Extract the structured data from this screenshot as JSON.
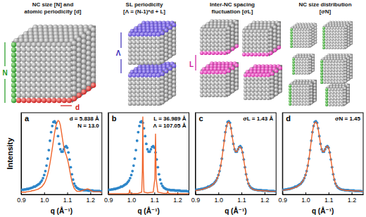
{
  "diagram": {
    "panels": [
      {
        "title": [
          "NC size [N] and",
          "atomic periodicity [d]"
        ],
        "labels": [
          "N",
          "d"
        ]
      },
      {
        "title": [
          "SL periodicity",
          "[Λ = (N-1)*d + L]"
        ],
        "labels": [
          "Λ"
        ]
      },
      {
        "title": [
          "Inter-NC spacing",
          "fluctuation [σL]"
        ],
        "labels": [
          "L"
        ]
      },
      {
        "title": [
          "NC size distribution",
          "[σN]"
        ]
      }
    ]
  },
  "chart_data": [
    {
      "type": "line",
      "label": "a",
      "annotations": [
        "d = 5.838 Å",
        "N = 13.0"
      ],
      "x_label": "q (Å⁻¹)",
      "y_label": "Intensity",
      "xlim": [
        0.9,
        1.25
      ],
      "ylim": [
        0,
        1.05
      ],
      "xticks": [
        0.9,
        {
          "value": 1,
          "label": "1.0"
        },
        1.1,
        1.2
      ],
      "tick_labels": "x",
      "x": [
        0.9,
        0.905,
        0.91,
        0.915,
        0.92,
        0.925,
        0.93,
        0.935,
        0.94,
        0.945,
        0.95,
        0.955,
        0.96,
        0.965,
        0.97,
        0.975,
        0.98,
        0.985,
        0.99,
        0.995,
        1.0,
        1.005,
        1.01,
        1.015,
        1.02,
        1.025,
        1.03,
        1.035,
        1.04,
        1.045,
        1.05,
        1.055,
        1.06,
        1.065,
        1.07,
        1.075,
        1.08,
        1.085,
        1.09,
        1.095,
        1.1,
        1.105,
        1.11,
        1.115,
        1.12,
        1.125,
        1.13,
        1.135,
        1.14,
        1.145,
        1.15,
        1.155,
        1.16,
        1.165,
        1.17,
        1.175,
        1.18,
        1.185,
        1.19,
        1.195,
        1.2,
        1.205,
        1.21,
        1.215,
        1.22,
        1.225,
        1.23,
        1.235,
        1.24,
        1.245,
        1.25
      ],
      "series": [
        {
          "type": "scatter",
          "marker": "circle",
          "color": "#2e86c9",
          "values": [
            0.06,
            0.06,
            0.06,
            0.065,
            0.065,
            0.07,
            0.07,
            0.075,
            0.08,
            0.085,
            0.09,
            0.1,
            0.1,
            0.11,
            0.12,
            0.13,
            0.14,
            0.16,
            0.18,
            0.21,
            0.25,
            0.3,
            0.37,
            0.46,
            0.57,
            0.69,
            0.8,
            0.88,
            0.93,
            0.94,
            0.92,
            0.85,
            0.75,
            0.65,
            0.58,
            0.55,
            0.55,
            0.58,
            0.61,
            0.62,
            0.6,
            0.54,
            0.45,
            0.35,
            0.26,
            0.19,
            0.14,
            0.11,
            0.09,
            0.08,
            0.07,
            0.065,
            0.06,
            0.06,
            0.055,
            0.055,
            0.055,
            0.055,
            0.05,
            0.05,
            0.05,
            0.05,
            0.05,
            0.045,
            0.045,
            0.045,
            0.045,
            0.045,
            0.045,
            0.04,
            0.04
          ]
        },
        {
          "type": "line",
          "color": "#f0642a",
          "values": [
            0.03,
            0.03,
            0.03,
            0.03,
            0.03,
            0.035,
            0.035,
            0.04,
            0.04,
            0.045,
            0.05,
            0.05,
            0.055,
            0.06,
            0.065,
            0.07,
            0.08,
            0.09,
            0.1,
            0.12,
            0.14,
            0.17,
            0.21,
            0.26,
            0.32,
            0.4,
            0.49,
            0.59,
            0.69,
            0.79,
            0.87,
            0.92,
            0.95,
            0.94,
            0.89,
            0.8,
            0.7,
            0.61,
            0.55,
            0.51,
            0.46,
            0.4,
            0.32,
            0.24,
            0.17,
            0.12,
            0.08,
            0.06,
            0.045,
            0.04,
            0.04,
            0.04,
            0.045,
            0.05,
            0.055,
            0.06,
            0.065,
            0.07,
            0.07,
            0.065,
            0.055,
            0.045,
            0.04,
            0.035,
            0.035,
            0.035,
            0.035,
            0.035,
            0.035,
            0.03,
            0.03
          ]
        }
      ]
    },
    {
      "type": "line",
      "label": "b",
      "annotations": [
        "L = 36.989 Å",
        "Λ = 107.05 Å"
      ],
      "x_label": "q (Å⁻¹)",
      "xlim": [
        0.9,
        1.25
      ],
      "ylim": [
        0,
        1.05
      ],
      "xticks": [
        0.9,
        {
          "value": 1,
          "label": "1.0"
        },
        1.1,
        1.2
      ],
      "tick_labels": "x",
      "x": [
        0.9,
        0.905,
        0.91,
        0.915,
        0.92,
        0.925,
        0.93,
        0.935,
        0.94,
        0.945,
        0.95,
        0.955,
        0.96,
        0.965,
        0.97,
        0.975,
        0.98,
        0.985,
        0.99,
        0.995,
        1.0,
        1.005,
        1.01,
        1.015,
        1.02,
        1.025,
        1.03,
        1.035,
        1.04,
        1.045,
        1.05,
        1.055,
        1.06,
        1.065,
        1.07,
        1.075,
        1.08,
        1.085,
        1.09,
        1.095,
        1.1,
        1.105,
        1.11,
        1.115,
        1.12,
        1.125,
        1.13,
        1.135,
        1.14,
        1.145,
        1.15,
        1.155,
        1.16,
        1.165,
        1.17,
        1.175,
        1.18,
        1.185,
        1.19,
        1.195,
        1.2,
        1.205,
        1.21,
        1.215,
        1.22,
        1.225,
        1.23,
        1.235,
        1.24,
        1.245,
        1.25
      ],
      "series": [
        {
          "type": "scatter",
          "marker": "circle",
          "color": "#2e86c9",
          "values": [
            0.06,
            0.06,
            0.06,
            0.065,
            0.065,
            0.07,
            0.07,
            0.075,
            0.08,
            0.085,
            0.09,
            0.1,
            0.1,
            0.11,
            0.12,
            0.13,
            0.14,
            0.16,
            0.18,
            0.21,
            0.25,
            0.3,
            0.37,
            0.46,
            0.57,
            0.69,
            0.8,
            0.88,
            0.93,
            0.94,
            0.92,
            0.85,
            0.75,
            0.65,
            0.58,
            0.55,
            0.55,
            0.58,
            0.61,
            0.62,
            0.6,
            0.54,
            0.45,
            0.35,
            0.26,
            0.19,
            0.14,
            0.11,
            0.09,
            0.08,
            0.07,
            0.065,
            0.06,
            0.06,
            0.055,
            0.055,
            0.055,
            0.055,
            0.05,
            0.05,
            0.05,
            0.05,
            0.05,
            0.045,
            0.045,
            0.045,
            0.045,
            0.045,
            0.045,
            0.04,
            0.04
          ]
        },
        {
          "type": "line",
          "color": "#f0642a",
          "x": [
            0.9,
            0.98,
            0.99,
            0.993,
            0.996,
            1.0,
            1.03,
            1.045,
            1.048,
            1.05,
            1.052,
            1.055,
            1.07,
            1.095,
            1.102,
            1.105,
            1.108,
            1.115,
            1.14,
            1.155,
            1.158,
            1.161,
            1.17,
            1.25
          ],
          "values": [
            0.01,
            0.01,
            0.015,
            0.06,
            0.015,
            0.01,
            0.015,
            0.03,
            0.3,
            1.0,
            0.3,
            0.03,
            0.02,
            0.03,
            0.2,
            0.78,
            0.2,
            0.03,
            0.015,
            0.015,
            0.04,
            0.015,
            0.01,
            0.01
          ]
        }
      ]
    },
    {
      "type": "line",
      "label": "c",
      "annotations": [
        "σL = 1.43 Å"
      ],
      "x_label": "q (Å⁻¹)",
      "xlim": [
        0.9,
        1.25
      ],
      "ylim": [
        0,
        1.05
      ],
      "xticks": [
        0.9,
        {
          "value": 1,
          "label": "1.0"
        },
        1.1,
        1.2
      ],
      "tick_labels": "x",
      "x": [
        0.9,
        0.905,
        0.91,
        0.915,
        0.92,
        0.925,
        0.93,
        0.935,
        0.94,
        0.945,
        0.95,
        0.955,
        0.96,
        0.965,
        0.97,
        0.975,
        0.98,
        0.985,
        0.99,
        0.995,
        1.0,
        1.005,
        1.01,
        1.015,
        1.02,
        1.025,
        1.03,
        1.035,
        1.04,
        1.045,
        1.05,
        1.055,
        1.06,
        1.065,
        1.07,
        1.075,
        1.08,
        1.085,
        1.09,
        1.095,
        1.1,
        1.105,
        1.11,
        1.115,
        1.12,
        1.125,
        1.13,
        1.135,
        1.14,
        1.145,
        1.15,
        1.155,
        1.16,
        1.165,
        1.17,
        1.175,
        1.18,
        1.185,
        1.19,
        1.195,
        1.2,
        1.205,
        1.21,
        1.215,
        1.22,
        1.225,
        1.23,
        1.235,
        1.24,
        1.245,
        1.25
      ],
      "series": [
        {
          "type": "scatter",
          "marker": "circle",
          "color": "#2e86c9",
          "values": [
            0.06,
            0.06,
            0.06,
            0.065,
            0.065,
            0.07,
            0.07,
            0.075,
            0.08,
            0.085,
            0.09,
            0.1,
            0.1,
            0.11,
            0.12,
            0.13,
            0.14,
            0.16,
            0.18,
            0.21,
            0.25,
            0.3,
            0.37,
            0.46,
            0.57,
            0.69,
            0.8,
            0.88,
            0.93,
            0.94,
            0.92,
            0.85,
            0.75,
            0.65,
            0.58,
            0.55,
            0.55,
            0.58,
            0.61,
            0.62,
            0.6,
            0.54,
            0.45,
            0.35,
            0.26,
            0.19,
            0.14,
            0.11,
            0.09,
            0.08,
            0.07,
            0.065,
            0.06,
            0.06,
            0.055,
            0.055,
            0.055,
            0.055,
            0.05,
            0.05,
            0.05,
            0.05,
            0.05,
            0.045,
            0.045,
            0.045,
            0.045,
            0.045,
            0.045,
            0.04,
            0.04
          ]
        },
        {
          "type": "line",
          "color": "#f0642a",
          "values": [
            0.05,
            0.05,
            0.055,
            0.055,
            0.06,
            0.06,
            0.065,
            0.07,
            0.075,
            0.08,
            0.085,
            0.09,
            0.1,
            0.105,
            0.115,
            0.125,
            0.14,
            0.155,
            0.175,
            0.205,
            0.245,
            0.3,
            0.37,
            0.46,
            0.57,
            0.68,
            0.79,
            0.87,
            0.92,
            0.93,
            0.91,
            0.84,
            0.74,
            0.65,
            0.58,
            0.55,
            0.55,
            0.58,
            0.61,
            0.61,
            0.59,
            0.53,
            0.44,
            0.35,
            0.26,
            0.19,
            0.14,
            0.11,
            0.09,
            0.075,
            0.065,
            0.06,
            0.055,
            0.055,
            0.05,
            0.05,
            0.05,
            0.05,
            0.05,
            0.045,
            0.045,
            0.045,
            0.045,
            0.045,
            0.04,
            0.04,
            0.04,
            0.04,
            0.04,
            0.04,
            0.04
          ]
        }
      ]
    },
    {
      "type": "line",
      "label": "d",
      "annotations": [
        "σN = 1.45"
      ],
      "x_label": "q (Å⁻¹)",
      "xlim": [
        0.9,
        1.25
      ],
      "ylim": [
        0,
        1.05
      ],
      "xticks": [
        0.9,
        {
          "value": 1,
          "label": "1.0"
        },
        1.1,
        1.2
      ],
      "tick_labels": "x",
      "x": [
        0.9,
        0.905,
        0.91,
        0.915,
        0.92,
        0.925,
        0.93,
        0.935,
        0.94,
        0.945,
        0.95,
        0.955,
        0.96,
        0.965,
        0.97,
        0.975,
        0.98,
        0.985,
        0.99,
        0.995,
        1.0,
        1.005,
        1.01,
        1.015,
        1.02,
        1.025,
        1.03,
        1.035,
        1.04,
        1.045,
        1.05,
        1.055,
        1.06,
        1.065,
        1.07,
        1.075,
        1.08,
        1.085,
        1.09,
        1.095,
        1.1,
        1.105,
        1.11,
        1.115,
        1.12,
        1.125,
        1.13,
        1.135,
        1.14,
        1.145,
        1.15,
        1.155,
        1.16,
        1.165,
        1.17,
        1.175,
        1.18,
        1.185,
        1.19,
        1.195,
        1.2,
        1.205,
        1.21,
        1.215,
        1.22,
        1.225,
        1.23,
        1.235,
        1.24,
        1.245,
        1.25
      ],
      "series": [
        {
          "type": "scatter",
          "marker": "circle",
          "color": "#2e86c9",
          "values": [
            0.06,
            0.06,
            0.06,
            0.065,
            0.065,
            0.07,
            0.07,
            0.075,
            0.08,
            0.085,
            0.09,
            0.1,
            0.1,
            0.11,
            0.12,
            0.13,
            0.14,
            0.16,
            0.18,
            0.21,
            0.25,
            0.3,
            0.37,
            0.46,
            0.57,
            0.69,
            0.8,
            0.88,
            0.93,
            0.94,
            0.92,
            0.85,
            0.75,
            0.65,
            0.58,
            0.55,
            0.55,
            0.58,
            0.61,
            0.62,
            0.6,
            0.54,
            0.45,
            0.35,
            0.26,
            0.19,
            0.14,
            0.11,
            0.09,
            0.08,
            0.07,
            0.065,
            0.06,
            0.06,
            0.055,
            0.055,
            0.055,
            0.055,
            0.05,
            0.05,
            0.05,
            0.05,
            0.05,
            0.045,
            0.045,
            0.045,
            0.045,
            0.045,
            0.045,
            0.04,
            0.04
          ]
        },
        {
          "type": "line",
          "color": "#f0642a",
          "values": [
            0.055,
            0.055,
            0.055,
            0.06,
            0.06,
            0.065,
            0.065,
            0.07,
            0.075,
            0.08,
            0.085,
            0.09,
            0.095,
            0.105,
            0.115,
            0.125,
            0.14,
            0.16,
            0.18,
            0.21,
            0.25,
            0.3,
            0.37,
            0.46,
            0.57,
            0.69,
            0.8,
            0.88,
            0.92,
            0.93,
            0.91,
            0.84,
            0.75,
            0.65,
            0.58,
            0.55,
            0.55,
            0.58,
            0.61,
            0.62,
            0.6,
            0.54,
            0.45,
            0.35,
            0.26,
            0.19,
            0.14,
            0.11,
            0.09,
            0.08,
            0.07,
            0.065,
            0.06,
            0.055,
            0.055,
            0.05,
            0.05,
            0.05,
            0.05,
            0.05,
            0.05,
            0.045,
            0.045,
            0.045,
            0.045,
            0.045,
            0.045,
            0.04,
            0.04,
            0.04,
            0.04
          ]
        }
      ]
    }
  ]
}
